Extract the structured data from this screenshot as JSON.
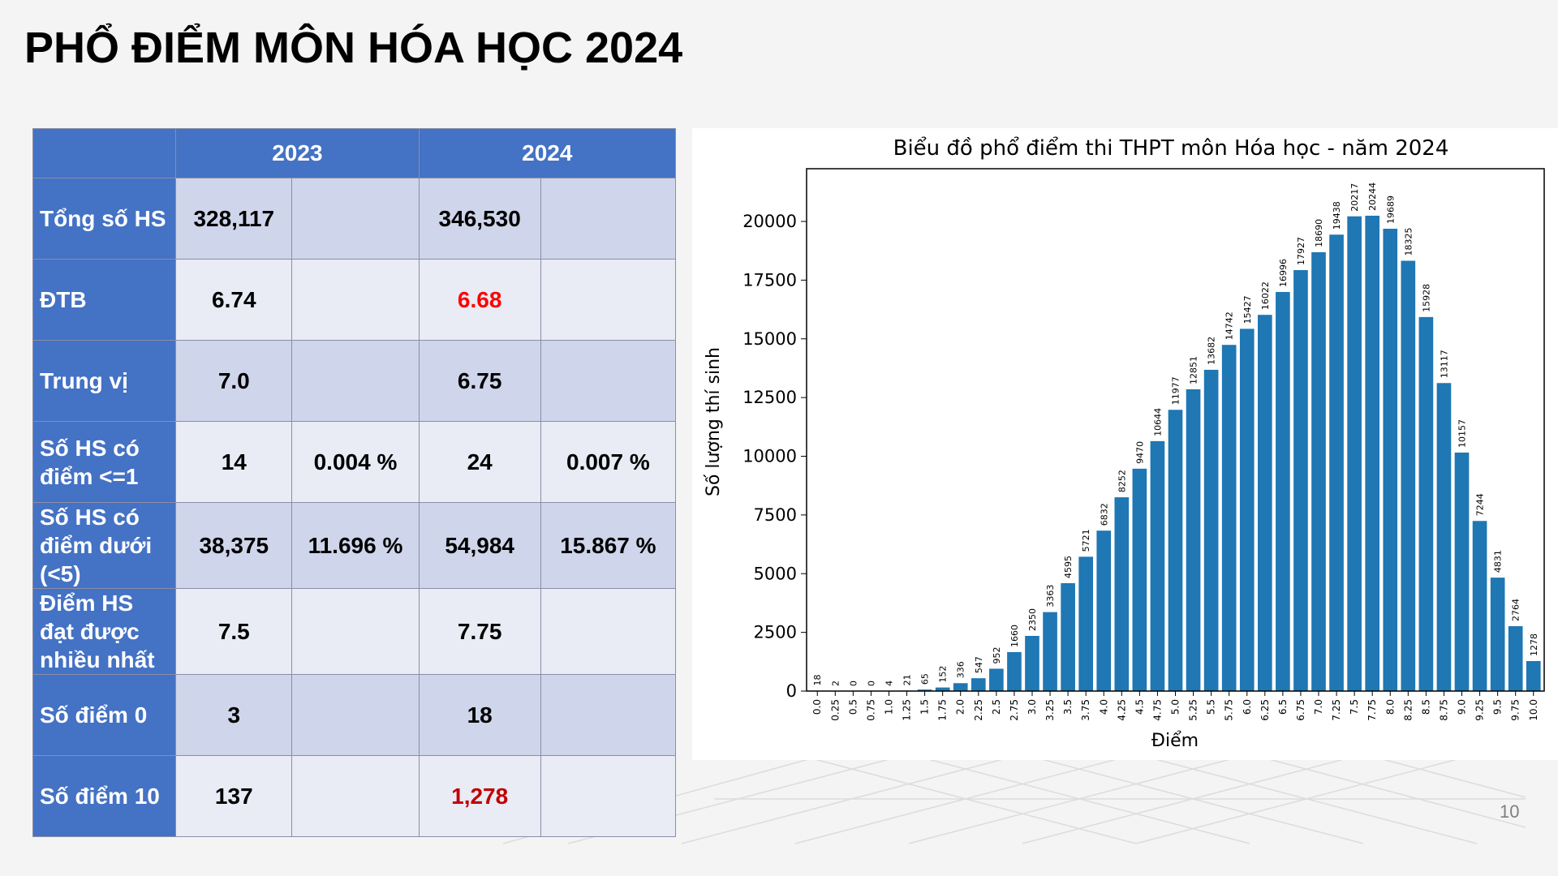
{
  "slide": {
    "title": "PHỔ ĐIỂM MÔN HÓA HỌC 2024",
    "page_number": "10"
  },
  "table": {
    "headers": [
      "",
      "2023",
      "2024"
    ],
    "rows": [
      {
        "label": "Tổng số HS",
        "v2023": "328,117",
        "p2023": "",
        "v2024": "346,530",
        "p2024": ""
      },
      {
        "label": "ĐTB",
        "v2023": "6.74",
        "p2023": "",
        "v2024": "6.68",
        "p2024": ""
      },
      {
        "label": "Trung vị",
        "v2023": "7.0",
        "p2023": "",
        "v2024": "6.75",
        "p2024": ""
      },
      {
        "label": "Số HS có điểm <=1",
        "v2023": "14",
        "p2023": "0.004 %",
        "v2024": "24",
        "p2024": "0.007 %"
      },
      {
        "label": "Số HS có điểm dưới (<5)",
        "v2023": "38,375",
        "p2023": "11.696 %",
        "v2024": "54,984",
        "p2024": "15.867 %"
      },
      {
        "label": "Điểm HS đạt được nhiều nhất",
        "v2023": "7.5",
        "p2023": "",
        "v2024": "7.75",
        "p2024": ""
      },
      {
        "label": "Số điểm 0",
        "v2023": "3",
        "p2023": "",
        "v2024": "18",
        "p2024": ""
      },
      {
        "label": "Số điểm 10",
        "v2023": "137",
        "p2023": "",
        "v2024": "1,278",
        "p2024": ""
      }
    ],
    "colors": {
      "header": "#4472c4",
      "row_odd": "#cfd5ea",
      "row_even": "#e9ebf5",
      "highlight_red": "#ff0000",
      "highlight_darkred": "#c00000"
    }
  },
  "chart_data": {
    "type": "bar",
    "title": "Biểu đồ phổ điểm thi THPT môn Hóa học - năm 2024",
    "xlabel": "Điểm",
    "ylabel": "Số lượng thí sinh",
    "categories": [
      "0.0",
      "0.25",
      "0.5",
      "0.75",
      "1.0",
      "1.25",
      "1.5",
      "1.75",
      "2.0",
      "2.25",
      "2.5",
      "2.75",
      "3.0",
      "3.25",
      "3.5",
      "3.75",
      "4.0",
      "4.25",
      "4.5",
      "4.75",
      "5.0",
      "5.25",
      "5.5",
      "5.75",
      "6.0",
      "6.25",
      "6.5",
      "6.75",
      "7.0",
      "7.25",
      "7.5",
      "7.75",
      "8.0",
      "8.25",
      "8.5",
      "8.75",
      "9.0",
      "9.25",
      "9.5",
      "9.75",
      "10.0"
    ],
    "values": [
      18,
      2,
      0,
      0,
      4,
      21,
      65,
      152,
      336,
      547,
      952,
      1660,
      2350,
      3363,
      4595,
      5721,
      6832,
      8252,
      9470,
      10644,
      11977,
      12851,
      13682,
      14742,
      15427,
      16022,
      16996,
      17927,
      18690,
      19438,
      20217,
      20244,
      19689,
      18325,
      15928,
      13117,
      10157,
      7244,
      4831,
      2764,
      1278
    ],
    "yticks": [
      0,
      2500,
      5000,
      7500,
      10000,
      12500,
      15000,
      17500,
      20000
    ],
    "ylim": [
      0,
      22245
    ],
    "bar_color": "#1f77b4",
    "grid": false
  }
}
